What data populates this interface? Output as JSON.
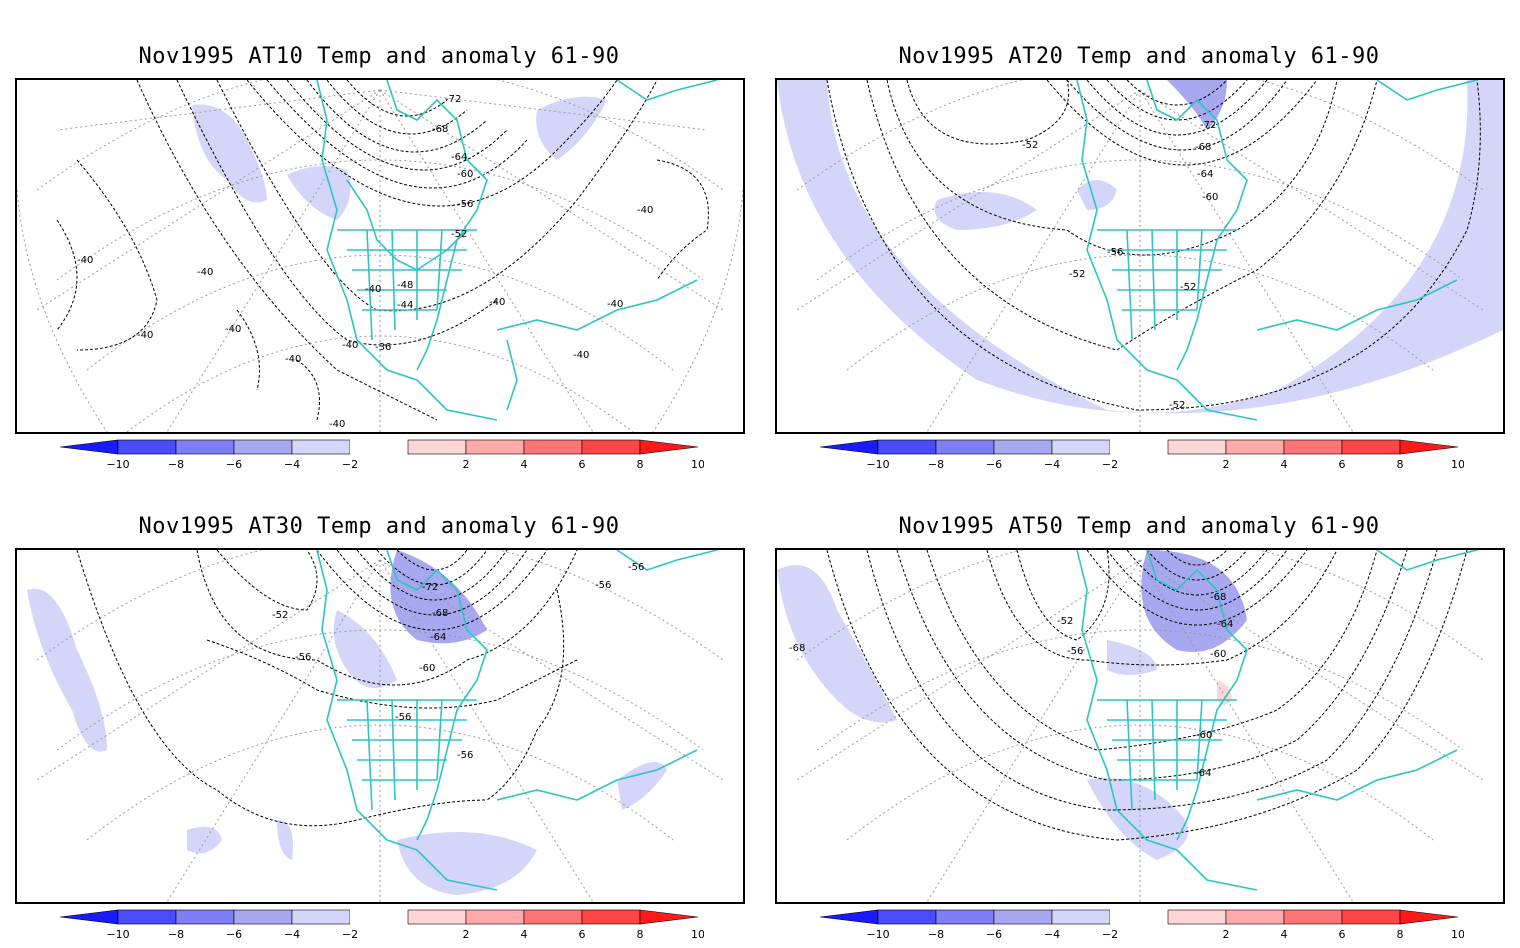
{
  "panels": [
    {
      "title": "Nov1995 AT10 Temp and anomaly 61-90",
      "contour_labels": [
        "-72",
        "-68",
        "-64",
        "-60",
        "-56",
        "-52",
        "-48",
        "-44",
        "-40",
        "-40",
        "-40",
        "-40",
        "-40",
        "-40",
        "-40",
        "-40",
        "-40",
        "-36",
        "-40",
        "-40",
        "-40"
      ]
    },
    {
      "title": "Nov1995 AT20 Temp and anomaly 61-90",
      "contour_labels": [
        "-72",
        "-68",
        "-64",
        "-60",
        "-56",
        "-52",
        "-52",
        "-52",
        "-52"
      ]
    },
    {
      "title": "Nov1995 AT30 Temp and anomaly 61-90",
      "contour_labels": [
        "-72",
        "-68",
        "-64",
        "-60",
        "-56",
        "-56",
        "-56",
        "-52",
        "-56",
        "-56"
      ]
    },
    {
      "title": "Nov1995 AT50 Temp and anomaly 61-90",
      "contour_labels": [
        "-68",
        "-64",
        "-60",
        "-56",
        "-52",
        "-68",
        "-60",
        "-64"
      ]
    }
  ],
  "colorbar": {
    "ticks": [
      "-10",
      "-8",
      "-6",
      "-4",
      "-2",
      "2",
      "4",
      "6",
      "8",
      "10"
    ],
    "colors": [
      "#1a1aff",
      "#4b4bff",
      "#7d7df5",
      "#a8a8f0",
      "#d5d5fa",
      "#ffffff",
      "#ffd6d6",
      "#ffaaaa",
      "#ff7575",
      "#ff4545",
      "#ff1a1a"
    ]
  },
  "colors": {
    "coast": "#2ec4c4",
    "anomaly_cold": "#d5d5fa",
    "anomaly_cold2": "#a8a8f0",
    "anomaly_warm": "#ffd6d6"
  }
}
